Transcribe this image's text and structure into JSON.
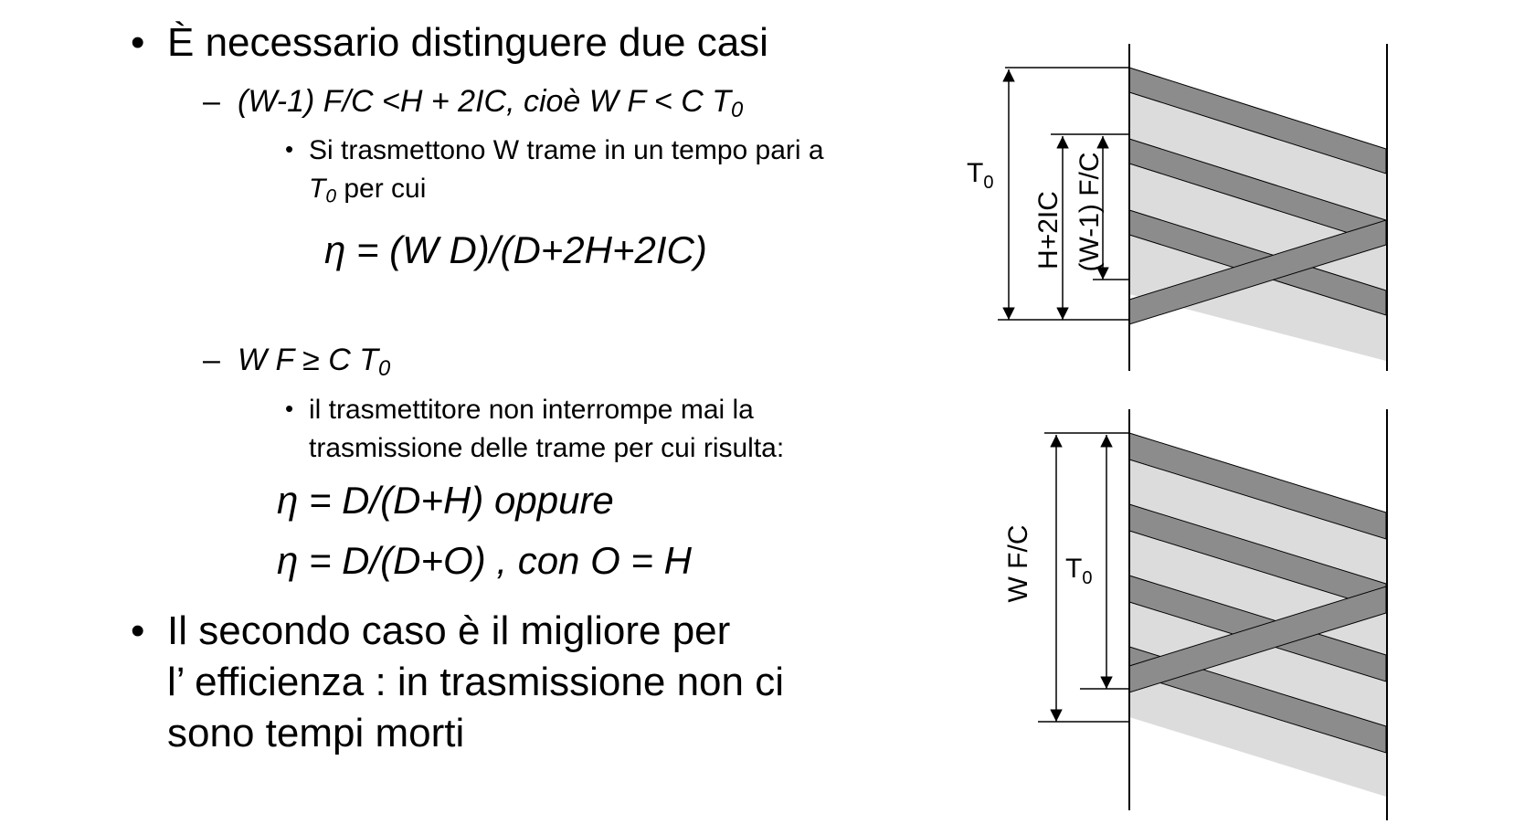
{
  "text": {
    "b1": "È necessario distinguere due casi",
    "c1_main": "(W-1) F/C <H + 2IC, cioè W F < C T",
    "c1_sub": "0",
    "c1_s1a": "Si trasmettono W trame in un tempo pari a",
    "c1_s1b_t": "T",
    "c1_s1b_sub": "0",
    "c1_s1b_rest": " per cui",
    "eq1": "η = (W D)/(D+2H+2IC)",
    "c2_main": "W F ≥ C T",
    "c2_sub": "0",
    "c2_s1a": "il trasmettitore non interrompe mai la",
    "c2_s1b": "trasmissione delle trame per cui risulta:",
    "eq2": "η = D/(D+H)  oppure",
    "eq3": "η = D/(D+O)  ,  con  O = H",
    "b2a": "Il secondo caso è il migliore per",
    "b2b": "l’ efficienza : in trasmissione non ci",
    "b2c": "sono tempi morti"
  },
  "symbols": {
    "bullet": "•",
    "dash": "–",
    "small_bullet": "•"
  },
  "diagram": {
    "top": {
      "t0": "T",
      "t0_sub": "0",
      "h2ic": "H+2IC",
      "w1fc": "(W-1) F/C"
    },
    "bottom": {
      "wfc": "W F/C",
      "t0": "T",
      "t0_sub": "0"
    }
  },
  "colors": {
    "dark_band": "#8c8c8c",
    "light_band": "#dcdcdc",
    "line": "#000000"
  }
}
